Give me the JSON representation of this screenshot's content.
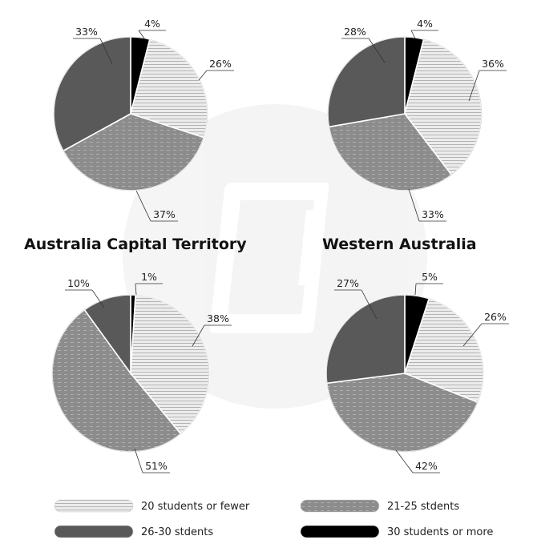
{
  "regions": [
    {
      "name": "Australia Capital Territory"
    },
    {
      "name": "Western Australia"
    }
  ],
  "legend": [
    {
      "label": "20 students or fewer",
      "color": "#e6e6e6",
      "pattern": "hlines"
    },
    {
      "label": "21-25 stdents",
      "color": "#8c8c8c",
      "pattern": "dashes"
    },
    {
      "label": "26-30 stdents",
      "color": "#595959",
      "pattern": "solid"
    },
    {
      "label": "30 students or more",
      "color": "#000000",
      "pattern": "solid"
    }
  ],
  "chart_data": [
    {
      "type": "pie",
      "region": "Australia Capital Territory",
      "position": "top-left",
      "categories": [
        "20 students or fewer",
        "21-25 stdents",
        "26-30 stdents",
        "30 students or more"
      ],
      "values": [
        26,
        37,
        33,
        4
      ],
      "labels": [
        "26%",
        "37%",
        "33%",
        "4%"
      ]
    },
    {
      "type": "pie",
      "region": "Western Australia",
      "position": "top-right",
      "categories": [
        "20 students or fewer",
        "21-25 stdents",
        "26-30 stdents",
        "30 students or more"
      ],
      "values": [
        36,
        33,
        28,
        4
      ],
      "labels": [
        "36%",
        "33%",
        "28%",
        "4%"
      ]
    },
    {
      "type": "pie",
      "region": "Australia Capital Territory",
      "position": "bottom-left",
      "categories": [
        "20 students or fewer",
        "21-25 stdents",
        "26-30 stdents",
        "30 students or more"
      ],
      "values": [
        38,
        51,
        10,
        1
      ],
      "labels": [
        "38%",
        "51%",
        "10%",
        "1%"
      ]
    },
    {
      "type": "pie",
      "region": "Western Australia",
      "position": "bottom-right",
      "categories": [
        "20 students or fewer",
        "21-25 stdents",
        "26-30 stdents",
        "30 students or more"
      ],
      "values": [
        26,
        42,
        27,
        5
      ],
      "labels": [
        "26%",
        "42%",
        "27%",
        "5%"
      ]
    }
  ]
}
